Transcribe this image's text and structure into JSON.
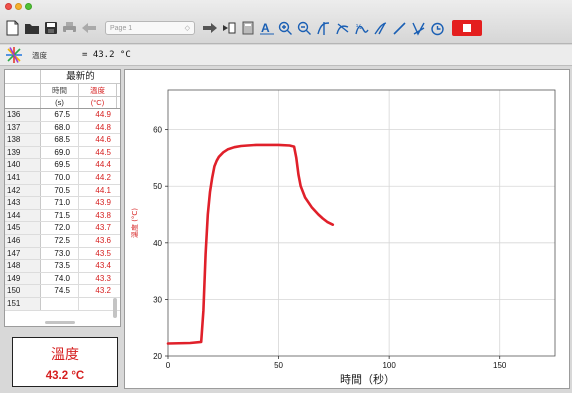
{
  "toolbar": {
    "page_select": "Page 1",
    "icons": [
      "new-file-icon",
      "open-folder-icon",
      "save-icon",
      "print-icon",
      "back-arrow-icon",
      "forward-arrow-icon",
      "next-page-icon",
      "calculator-icon",
      "autoscale-icon",
      "zoom-in-icon",
      "zoom-out-icon",
      "examine-icon",
      "tangent-icon",
      "integral-icon",
      "curve-fit-icon",
      "linear-fit-icon",
      "model-icon",
      "timer-icon",
      "stop-icon"
    ]
  },
  "meter_bar": {
    "label": "溫度",
    "value": "= 43.2 °C"
  },
  "table": {
    "group_header": "最新的",
    "columns": [
      {
        "name": "時間",
        "unit": "(s)"
      },
      {
        "name": "溫度",
        "unit": "(°C)"
      }
    ],
    "rows": [
      [
        "136",
        "67.5",
        "44.9"
      ],
      [
        "137",
        "68.0",
        "44.8"
      ],
      [
        "138",
        "68.5",
        "44.6"
      ],
      [
        "139",
        "69.0",
        "44.5"
      ],
      [
        "140",
        "69.5",
        "44.4"
      ],
      [
        "141",
        "70.0",
        "44.2"
      ],
      [
        "142",
        "70.5",
        "44.1"
      ],
      [
        "143",
        "71.0",
        "43.9"
      ],
      [
        "144",
        "71.5",
        "43.8"
      ],
      [
        "145",
        "72.0",
        "43.7"
      ],
      [
        "146",
        "72.5",
        "43.6"
      ],
      [
        "147",
        "73.0",
        "43.5"
      ],
      [
        "148",
        "73.5",
        "43.4"
      ],
      [
        "149",
        "74.0",
        "43.3"
      ],
      [
        "150",
        "74.5",
        "43.2"
      ],
      [
        "151",
        "",
        ""
      ]
    ]
  },
  "big_meter": {
    "label": "溫度",
    "value": "43.2 °C"
  },
  "chart_data": {
    "type": "line",
    "xlabel": "時間（秒）",
    "ylabel": "溫度 (°C)",
    "xlim": [
      0,
      175
    ],
    "ylim": [
      20,
      67
    ],
    "xticks": [
      0,
      50,
      100,
      150
    ],
    "yticks": [
      20,
      30,
      40,
      50,
      60
    ],
    "grid": true,
    "line_color": "#e0202a",
    "series": [
      {
        "x": [
          0,
          10,
          15,
          16,
          17,
          18,
          19,
          20,
          21,
          22,
          23,
          25,
          27,
          30,
          33,
          36,
          40,
          45,
          50,
          55,
          57,
          58,
          59,
          60,
          62,
          65,
          68,
          70,
          72,
          74.5
        ],
        "values": [
          22.2,
          22.3,
          22.5,
          28,
          38,
          45,
          49,
          51.5,
          53.5,
          54.5,
          55.2,
          56,
          56.5,
          56.9,
          57.1,
          57.2,
          57.3,
          57.3,
          57.3,
          57.2,
          57.0,
          55,
          52,
          50,
          48,
          46.3,
          45,
          44.3,
          43.7,
          43.2
        ]
      }
    ]
  }
}
